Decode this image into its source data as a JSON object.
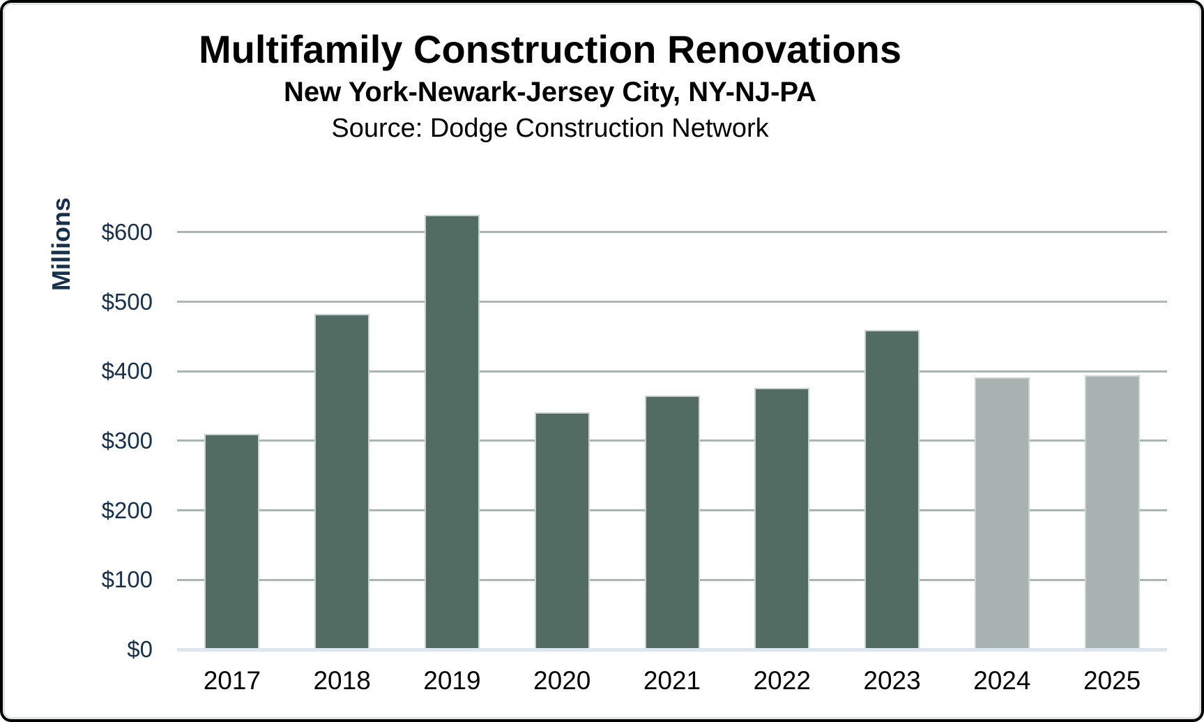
{
  "header": {
    "title": "Multifamily Construction Renovations",
    "subtitle": "New York-Newark-Jersey City, NY-NJ-PA",
    "source": "Source: Dodge Construction Network"
  },
  "chart_data": {
    "type": "bar",
    "title": "Multifamily Construction Renovations",
    "subtitle": "New York-Newark-Jersey City, NY-NJ-PA",
    "source": "Source: Dodge Construction Network",
    "ylabel": "Millions",
    "xlabel": "",
    "categories": [
      "2017",
      "2018",
      "2019",
      "2020",
      "2021",
      "2022",
      "2023",
      "2024",
      "2025"
    ],
    "values": [
      310,
      482,
      625,
      341,
      365,
      376,
      459,
      391,
      394
    ],
    "bar_kinds": [
      "actual",
      "actual",
      "actual",
      "actual",
      "actual",
      "actual",
      "actual",
      "forecast",
      "forecast"
    ],
    "units": "USD millions",
    "y_ticks": [
      {
        "value": 0,
        "label": "$0"
      },
      {
        "value": 100,
        "label": "$100"
      },
      {
        "value": 200,
        "label": "$200"
      },
      {
        "value": 300,
        "label": "$300"
      },
      {
        "value": 400,
        "label": "$400"
      },
      {
        "value": 500,
        "label": "$500"
      },
      {
        "value": 600,
        "label": "$600"
      }
    ],
    "ylim": [
      0,
      650
    ],
    "grid": true,
    "legend_position": "none",
    "colors": {
      "actual_bar": "#526B63",
      "forecast_bar": "#A8B2B0",
      "bar_outline": "#C9D3D2",
      "gridline": "#A9B6B2",
      "baseline": "#DCE6F2",
      "axis_text": "#17314D",
      "category_text": "#000000",
      "border": "#000000"
    }
  }
}
